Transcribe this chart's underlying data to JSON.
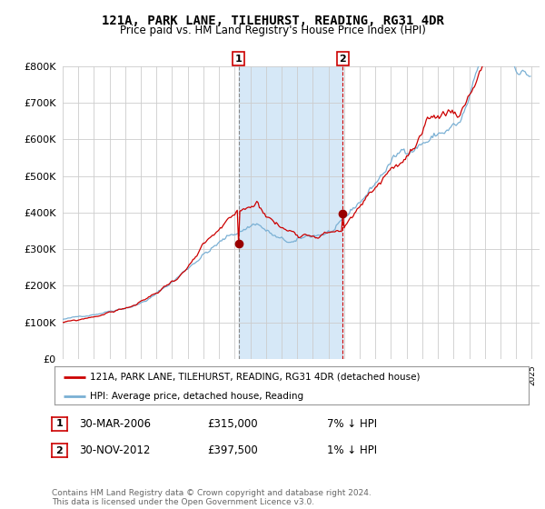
{
  "title": "121A, PARK LANE, TILEHURST, READING, RG31 4DR",
  "subtitle": "Price paid vs. HM Land Registry's House Price Index (HPI)",
  "ylim": [
    0,
    800000
  ],
  "xlim_start": 1995.0,
  "xlim_end": 2025.5,
  "sale1_x": 2006.25,
  "sale1_y": 315000,
  "sale1_label": "1",
  "sale2_x": 2012.92,
  "sale2_y": 397500,
  "sale2_label": "2",
  "highlight_color": "#d6e8f7",
  "line_color_red": "#cc0000",
  "line_color_blue": "#7ab0d4",
  "marker_color_red": "#990000",
  "legend_label_red": "121A, PARK LANE, TILEHURST, READING, RG31 4DR (detached house)",
  "legend_label_blue": "HPI: Average price, detached house, Reading",
  "table_rows": [
    {
      "num": "1",
      "date": "30-MAR-2006",
      "price": "£315,000",
      "hpi": "7% ↓ HPI"
    },
    {
      "num": "2",
      "date": "30-NOV-2012",
      "price": "£397,500",
      "hpi": "1% ↓ HPI"
    }
  ],
  "footer": "Contains HM Land Registry data © Crown copyright and database right 2024.\nThis data is licensed under the Open Government Licence v3.0.",
  "background_color": "#ffffff",
  "plot_bg_color": "#ffffff"
}
